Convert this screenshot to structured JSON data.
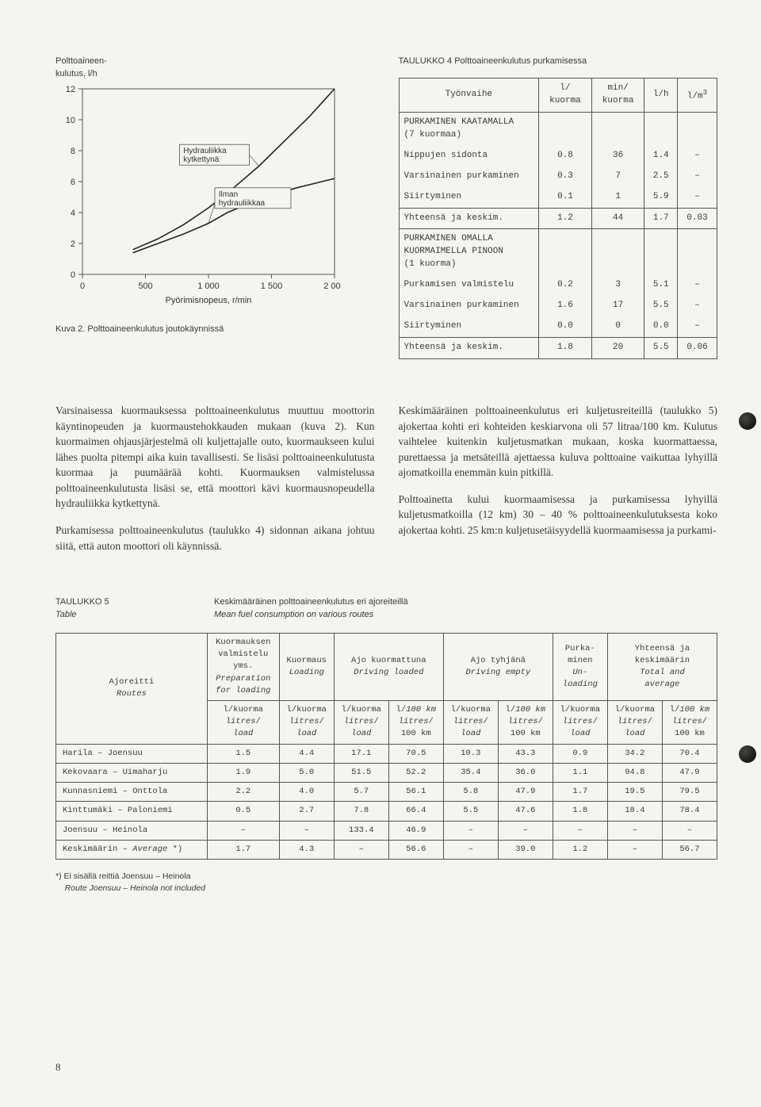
{
  "chart": {
    "ytitle1": "Polttoaineen-",
    "ytitle2": "kulutus, l/h",
    "xtitle": "Pyörimisnopeus, r/min",
    "caption": "Kuva 2.  Polttoaineenkulutus joutokäynnissä",
    "line1_label_a": "Hydrauliikka",
    "line1_label_b": "kytkettynä",
    "line2_label_a": "Ilman",
    "line2_label_b": "hydrauliikkaa",
    "xlim": [
      0,
      2000
    ],
    "ylim": [
      0,
      12
    ],
    "xticks": [
      0,
      500,
      1000,
      1500,
      2000
    ],
    "yticks": [
      0,
      2,
      4,
      6,
      8,
      10,
      12
    ],
    "series1": [
      [
        400,
        1.6
      ],
      [
        600,
        2.3
      ],
      [
        800,
        3.2
      ],
      [
        1000,
        4.3
      ],
      [
        1200,
        5.6
      ],
      [
        1400,
        7.0
      ],
      [
        1600,
        8.6
      ],
      [
        1800,
        10.2
      ],
      [
        2000,
        12.0
      ]
    ],
    "series2": [
      [
        400,
        1.4
      ],
      [
        600,
        2.0
      ],
      [
        800,
        2.6
      ],
      [
        1000,
        3.3
      ],
      [
        1150,
        4.0
      ],
      [
        1300,
        4.5
      ],
      [
        1500,
        5.1
      ],
      [
        1700,
        5.6
      ],
      [
        1900,
        6.0
      ],
      [
        2000,
        6.2
      ]
    ],
    "line_color": "#222222",
    "grid_color": "#555555",
    "bg": "#f5f4ef"
  },
  "table4": {
    "title": "TAULUKKO 4     Polttoaineenkulutus purkamisessa",
    "headers": [
      "Työnvaihe",
      "l/\nkuorma",
      "min/\nkuorma",
      "l/h",
      "l/m³"
    ],
    "sections": [
      {
        "head": "PURKAMINEN KAATAMALLA\n(7 kuormaa)",
        "rows": [
          [
            "Nippujen sidonta",
            "0.8",
            "36",
            "1.4",
            "–"
          ],
          [
            "Varsinainen purkaminen",
            "0.3",
            "7",
            "2.5",
            "–"
          ],
          [
            "Siirtyminen",
            "0.1",
            "1",
            "5.9",
            "–"
          ]
        ],
        "total": [
          "Yhteensä ja keskim.",
          "1.2",
          "44",
          "1.7",
          "0.03"
        ]
      },
      {
        "head": "PURKAMINEN OMALLA\nKUORMAIMELLA PINOON\n(1 kuorma)",
        "rows": [
          [
            "Purkamisen valmistelu",
            "0.2",
            "3",
            "5.1",
            "–"
          ],
          [
            "Varsinainen purkaminen",
            "1.6",
            "17",
            "5.5",
            "–"
          ],
          [
            "Siirtyminen",
            "0.0",
            "0",
            "0.0",
            "–"
          ]
        ],
        "total": [
          "Yhteensä ja keskim.",
          "1.8",
          "20",
          "5.5",
          "0.06"
        ]
      }
    ]
  },
  "body": {
    "left": {
      "p1": "Varsinaisessa kuormauksessa polttoaineen­kulutus muuttuu moottorin käyntinopeuden ja kuormaustehokkauden mukaan (kuva 2). Kun kuormaimen ohjausjärjestelmä oli kul­jettajalle outo, kuormaukseen kului lähes puolta pitempi aika kuin tavallisesti. Se lisäsi polttoaineenkulutusta kuormaa ja puumäärää kohti. Kuormauksen valmistelussa polttoaineenkulutusta lisäsi se, että moottori kävi kuormausnopeudella hydrau­liikka kytkettynä.",
      "p2": "Purkamisessa polttoaineenkulutus (tauluk­ko 4) sidonnan aikana johtuu siitä, että auton moottori oli käynnissä."
    },
    "right": {
      "p1": "Keskimääräinen polttoaineenkulutus eri kuljetusreiteillä (taulukko 5) ajokertaa kohti eri kohteiden keskiarvona oli 57 litraa/100 km. Kulutus vaihtelee kuiten­kin kuljetusmatkan mukaan, koska kuormat­taessa, purettaessa ja metsäteillä ajetta­essa kuluva polttoaine vaikuttaa lyhyillä ajomatkoilla enemmän kuin pitkillä.",
      "p2": "Polttoainetta kului kuormaamisessa ja pur­kamisessa lyhyillä kuljetusmatkoilla (12 km) 30 – 40 % polttoaineenkulutuksesta koko ajokertaa kohti. 25 km:n kuljetus­etäisyydellä kuormaamisessa ja purkami-"
    }
  },
  "table5": {
    "title1a": "TAULUKKO 5",
    "title1b": "Table",
    "title2a": "Keskimääräinen polttoaineenkulutus eri ajoreiteillä",
    "title2b": "Mean fuel consumption on various routes",
    "h_route_a": "Ajoreitti",
    "h_route_b": "Routes",
    "h_prep_a": "Kuormauksen\nvalmistelu\nyms.",
    "h_prep_b": "Preparation\nfor loading",
    "h_load_a": "Kuormaus",
    "h_load_b": "Loading",
    "h_dload_a": "Ajo kuormattuna",
    "h_dload_b": "Driving loaded",
    "h_demp_a": "Ajo tyhjänä",
    "h_demp_b": "Driving empty",
    "h_unl_a": "Purka-\nminen",
    "h_unl_b": "Un-\nloading",
    "h_tot_a": "Yhteensä ja\nkeskimäärin",
    "h_tot_b": "Total and\naverage",
    "unit_load": "l/kuorma\nlitres/\nload",
    "unit_100": "l/100 km\nlitres/\n100 km",
    "rows": [
      [
        "Harila – Joensuu",
        "1.5",
        "4.4",
        "17.1",
        "70.5",
        "10.3",
        "43.3",
        "0.9",
        "34.2",
        "70.4"
      ],
      [
        "Kekovaara – Uimaharju",
        "1.9",
        "5.0",
        "51.5",
        "52.2",
        "35.4",
        "36.0",
        "1.1",
        "94.8",
        "47.9"
      ],
      [
        "Kunnasniemi – Onttola",
        "2.2",
        "4.0",
        "5.7",
        "56.1",
        "5.8",
        "47.9",
        "1.7",
        "19.5",
        "79.5"
      ],
      [
        "Kinttumäki – Paloniemi",
        "0.5",
        "2.7",
        "7.8",
        "66.4",
        "5.5",
        "47.6",
        "1.8",
        "18.4",
        "78.4"
      ],
      [
        "Joensuu – Heinola",
        "–",
        "–",
        "133.4",
        "46.9",
        "–",
        "–",
        "–",
        "–",
        "–"
      ]
    ],
    "avg_label": "Keskimäärin – Average *)",
    "avg": [
      "1.7",
      "4.3",
      "–",
      "56.6",
      "–",
      "39.0",
      "1.2",
      "–",
      "56.7"
    ]
  },
  "footnote": {
    "a": "*)  Ei sisällä reittiä Joensuu – Heinola",
    "b": "Route Joensuu – Heinola not included"
  },
  "page": "8"
}
